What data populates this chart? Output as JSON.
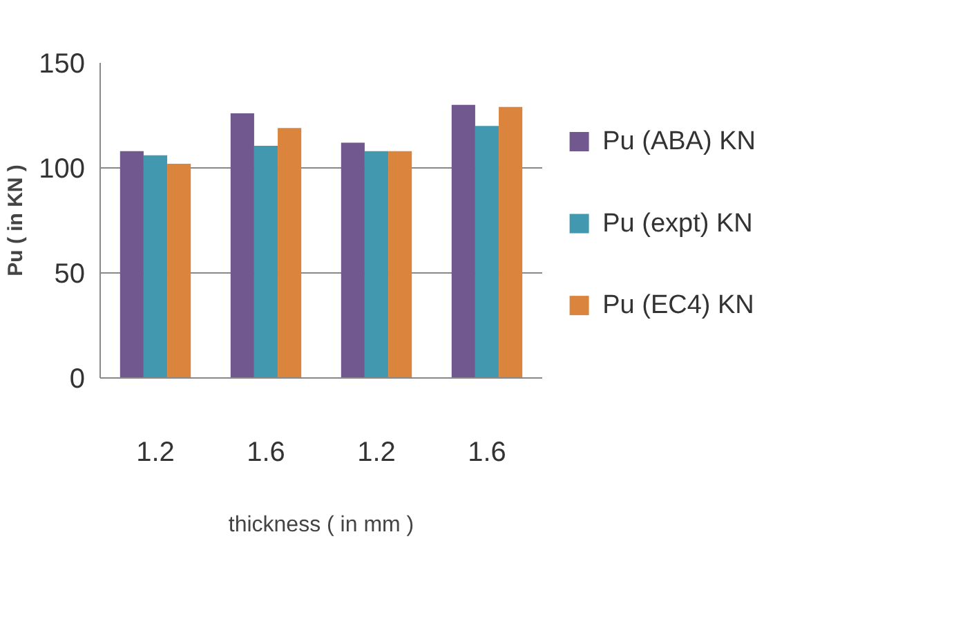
{
  "chart_data": {
    "type": "bar",
    "xlabel": "thickness ( in mm )",
    "ylabel": "Pu ( in KN )",
    "categories": [
      "1.2",
      "1.6",
      "1.2",
      "1.6"
    ],
    "series": [
      {
        "name": "Pu (ABA) KN",
        "color": "#71588f",
        "values": [
          108,
          126,
          112,
          130
        ]
      },
      {
        "name": "Pu (expt) KN",
        "color": "#4198af",
        "values": [
          106,
          110.5,
          108,
          120
        ]
      },
      {
        "name": "Pu (EC4) KN",
        "color": "#db843d",
        "values": [
          102,
          119,
          108,
          129
        ]
      }
    ],
    "ylim": [
      0,
      150
    ],
    "yticks": [
      0,
      50,
      100,
      150
    ],
    "grid": "y",
    "legend": "right"
  }
}
